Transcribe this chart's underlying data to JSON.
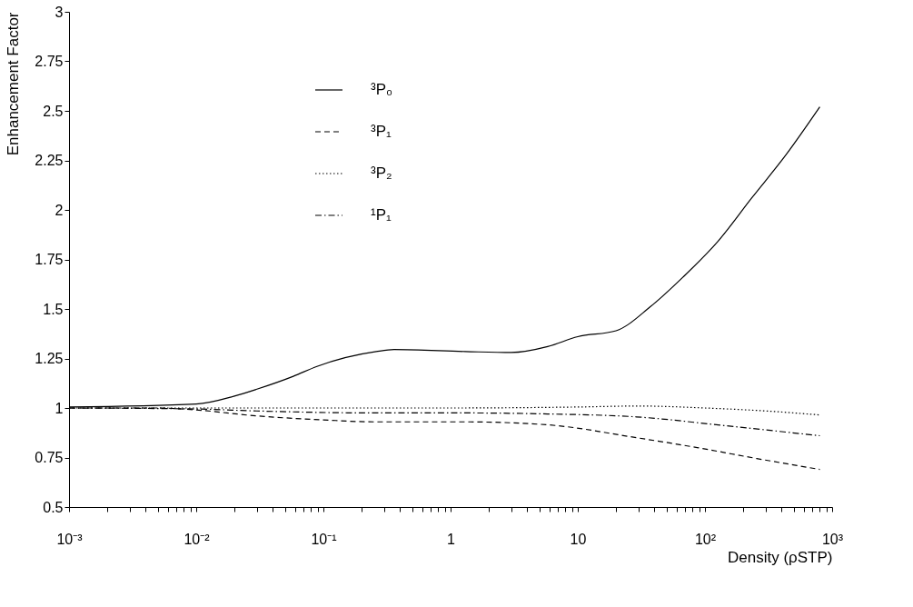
{
  "chart_data": {
    "type": "line",
    "xlabel": "Density (ρSTP)",
    "ylabel": "Enhancement Factor",
    "log": "x",
    "grid": false,
    "legend": "top left",
    "marker": "none",
    "xlim": [
      0.001,
      1000
    ],
    "ylim": [
      0.5,
      3
    ],
    "xticks": [
      {
        "value": 0.001,
        "label": "10⁻³"
      },
      {
        "value": 0.002,
        "label": null
      },
      {
        "value": 0.003,
        "label": null
      },
      {
        "value": 0.004,
        "label": null
      },
      {
        "value": 0.005,
        "label": null
      },
      {
        "value": 0.006,
        "label": null
      },
      {
        "value": 0.007,
        "label": null
      },
      {
        "value": 0.008,
        "label": null
      },
      {
        "value": 0.009,
        "label": null
      },
      {
        "value": 0.01,
        "label": "10⁻²"
      },
      {
        "value": 0.02,
        "label": null
      },
      {
        "value": 0.03,
        "label": null
      },
      {
        "value": 0.04,
        "label": null
      },
      {
        "value": 0.05,
        "label": null
      },
      {
        "value": 0.06,
        "label": null
      },
      {
        "value": 0.07,
        "label": null
      },
      {
        "value": 0.08,
        "label": null
      },
      {
        "value": 0.09,
        "label": null
      },
      {
        "value": 0.1,
        "label": "10⁻¹"
      },
      {
        "value": 0.2,
        "label": null
      },
      {
        "value": 0.3,
        "label": null
      },
      {
        "value": 0.4,
        "label": null
      },
      {
        "value": 0.5,
        "label": null
      },
      {
        "value": 0.6,
        "label": null
      },
      {
        "value": 0.7,
        "label": null
      },
      {
        "value": 0.8,
        "label": null
      },
      {
        "value": 0.9,
        "label": null
      },
      1,
      {
        "value": 2,
        "label": null
      },
      {
        "value": 3,
        "label": null
      },
      {
        "value": 4,
        "label": null
      },
      {
        "value": 5,
        "label": null
      },
      {
        "value": 6,
        "label": null
      },
      {
        "value": 7,
        "label": null
      },
      {
        "value": 8,
        "label": null
      },
      {
        "value": 9,
        "label": null
      },
      10,
      {
        "value": 20,
        "label": null
      },
      {
        "value": 30,
        "label": null
      },
      {
        "value": 40,
        "label": null
      },
      {
        "value": 50,
        "label": null
      },
      {
        "value": 60,
        "label": null
      },
      {
        "value": 70,
        "label": null
      },
      {
        "value": 80,
        "label": null
      },
      {
        "value": 90,
        "label": null
      },
      {
        "value": 100,
        "label": "10²"
      },
      {
        "value": 200,
        "label": null
      },
      {
        "value": 300,
        "label": null
      },
      {
        "value": 400,
        "label": null
      },
      {
        "value": 500,
        "label": null
      },
      {
        "value": 600,
        "label": null
      },
      {
        "value": 700,
        "label": null
      },
      {
        "value": 800,
        "label": null
      },
      {
        "value": 900,
        "label": null
      },
      {
        "value": 1000,
        "label": "10³"
      }
    ],
    "yticks": [
      0.5,
      0.75,
      1,
      1.25,
      1.5,
      1.75,
      2,
      2.25,
      2.5,
      2.75,
      3
    ],
    "series": [
      {
        "name": "³P₀",
        "color": "#000000",
        "line_style": "solid",
        "x": [
          0.001,
          0.01,
          0.02,
          0.03,
          0.058,
          0.089,
          0.26,
          0.36,
          1.3,
          3,
          5.8,
          10,
          20,
          37,
          67,
          126,
          233,
          436,
          800
        ],
        "values": [
          1.005,
          1.02,
          1.06,
          1.095,
          1.16,
          1.21,
          1.285,
          1.295,
          1.285,
          1.28,
          1.31,
          1.36,
          1.39,
          1.51,
          1.66,
          1.84,
          2.06,
          2.28,
          2.52
        ]
      },
      {
        "name": "³P₁",
        "color": "#000000",
        "line_style": "dashed",
        "x": [
          0.001,
          0.005,
          0.01,
          0.03,
          0.1,
          0.26,
          1.3,
          5.8,
          29,
          87,
          255,
          800
        ],
        "values": [
          1.0,
          1.0,
          0.99,
          0.96,
          0.94,
          0.93,
          0.93,
          0.915,
          0.85,
          0.8,
          0.745,
          0.69
        ]
      },
      {
        "name": "³P₂",
        "color": "#000000",
        "line_style": "dotted",
        "x": [
          0.001,
          0.01,
          0.1,
          1,
          10,
          30,
          100,
          300,
          800
        ],
        "values": [
          1.0,
          1.0,
          1.0,
          1.0,
          1.005,
          1.01,
          1.0,
          0.985,
          0.965
        ]
      },
      {
        "name": "¹P₁",
        "color": "#000000",
        "line_style": "dashdot",
        "x": [
          0.001,
          0.01,
          0.03,
          0.26,
          1.3,
          5.8,
          29,
          148,
          800
        ],
        "values": [
          1.0,
          0.995,
          0.985,
          0.975,
          0.975,
          0.97,
          0.955,
          0.91,
          0.86
        ]
      }
    ]
  }
}
